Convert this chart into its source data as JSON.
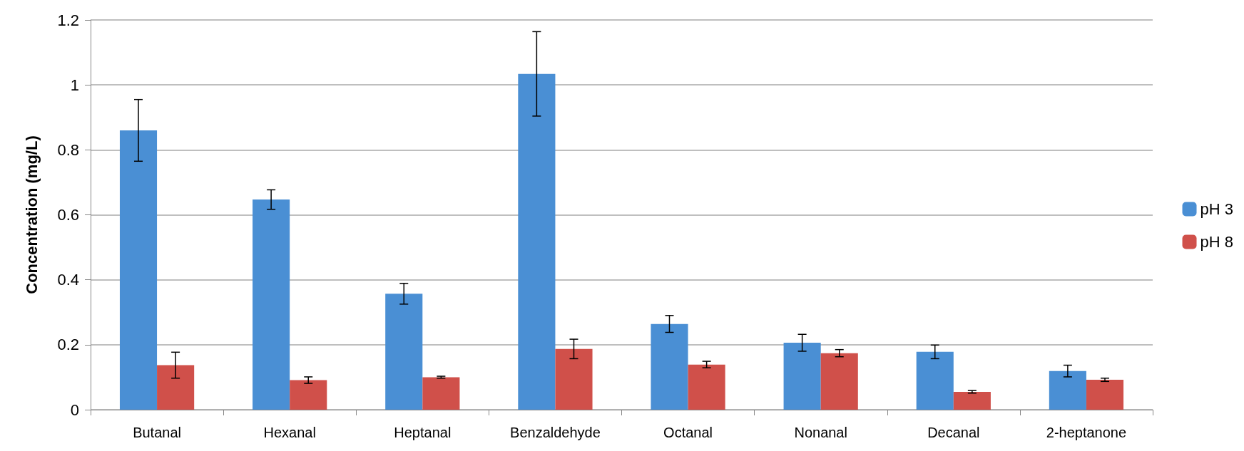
{
  "chart_data": {
    "type": "bar",
    "ylabel": "Concentration (mg/L)",
    "categories": [
      "Butanal",
      "Hexanal",
      "Heptanal",
      "Benzaldehyde",
      "Octanal",
      "Nonanal",
      "Decanal",
      "2-heptanone"
    ],
    "series": [
      {
        "name": "pH 3",
        "color": "#4a8fd4",
        "values": [
          0.86,
          0.647,
          0.357,
          1.034,
          0.264,
          0.206,
          0.178,
          0.119
        ],
        "errors": [
          0.095,
          0.03,
          0.032,
          0.13,
          0.026,
          0.026,
          0.021,
          0.018
        ]
      },
      {
        "name": "pH 8",
        "color": "#d0504a",
        "values": [
          0.137,
          0.091,
          0.1,
          0.187,
          0.139,
          0.174,
          0.055,
          0.092
        ],
        "errors": [
          0.04,
          0.01,
          0.003,
          0.03,
          0.01,
          0.011,
          0.004,
          0.005
        ]
      }
    ],
    "ylim": [
      0,
      1.2
    ],
    "yticks": [
      0,
      0.2,
      0.4,
      0.6,
      0.8,
      1,
      1.2
    ],
    "grid": "y",
    "legend": "right"
  }
}
